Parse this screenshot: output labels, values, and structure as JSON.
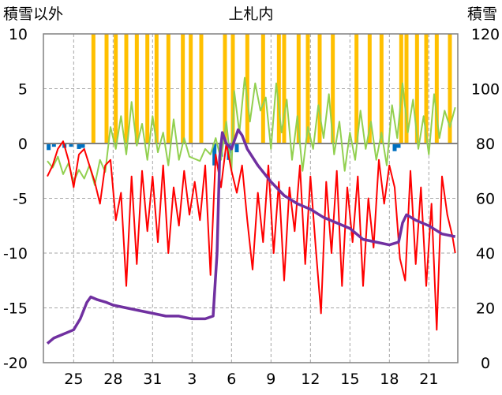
{
  "chart_data": {
    "type": "line",
    "title": "上札内",
    "left_axis": {
      "label": "積雪以外",
      "ylim": [
        -20,
        10
      ],
      "ticks": [
        "10",
        "5",
        "0",
        "-5",
        "-10",
        "-15",
        "-20"
      ]
    },
    "right_axis": {
      "label": "積雪",
      "ylim": [
        0,
        120
      ],
      "ticks": [
        "120",
        "100",
        "80",
        "60",
        "40",
        "20",
        "0"
      ]
    },
    "x_axis": {
      "tick_labels": [
        "25",
        "28",
        "31",
        "3",
        "6",
        "9",
        "12",
        "15",
        "18",
        "21"
      ],
      "tick_days": [
        2,
        5,
        8,
        11,
        14,
        17,
        20,
        23,
        26,
        29
      ],
      "xlim": [
        -0.3,
        31.2
      ]
    },
    "grid": true,
    "colors": {
      "temp_max": "#92D050",
      "temp_min": "#FF0000",
      "snow_depth": "#7030A0",
      "precip": "#FFC000",
      "neg_bars": "#0070C0"
    },
    "series": [
      {
        "key": "temp_max",
        "axis": "left",
        "points": [
          [
            0,
            -1.6
          ],
          [
            0.4,
            -2.2
          ],
          [
            0.8,
            -1.2
          ],
          [
            1.2,
            -2.8
          ],
          [
            1.6,
            -1.8
          ],
          [
            2,
            -3.5
          ],
          [
            2.4,
            -2.4
          ],
          [
            2.8,
            -3.2
          ],
          [
            3.2,
            -2.0
          ],
          [
            3.6,
            -3.8
          ],
          [
            4,
            -1.5
          ],
          [
            4.4,
            -2.6
          ],
          [
            4.8,
            1.5
          ],
          [
            5.2,
            -0.5
          ],
          [
            5.6,
            2.5
          ],
          [
            6,
            -1.0
          ],
          [
            6.4,
            3.8
          ],
          [
            6.8,
            -0.2
          ],
          [
            7.2,
            1.8
          ],
          [
            7.6,
            -1.5
          ],
          [
            8,
            2.5
          ],
          [
            8.4,
            -0.8
          ],
          [
            8.8,
            1.0
          ],
          [
            9.2,
            -2.0
          ],
          [
            9.6,
            2.2
          ],
          [
            10,
            -1.5
          ],
          [
            10.4,
            0.5
          ],
          [
            10.8,
            -1.2
          ],
          [
            11.2,
            -1.4
          ],
          [
            11.6,
            -1.6
          ],
          [
            12,
            -0.5
          ],
          [
            12.4,
            -1.0
          ],
          [
            12.8,
            0.5
          ],
          [
            13.2,
            -1.5
          ],
          [
            13.6,
            2.0
          ],
          [
            14,
            -2.5
          ],
          [
            14.2,
            4.8
          ],
          [
            14.6,
            1.0
          ],
          [
            15,
            6.0
          ],
          [
            15.4,
            2.0
          ],
          [
            15.8,
            5.5
          ],
          [
            16.2,
            3.0
          ],
          [
            16.6,
            4.2
          ],
          [
            17,
            -0.5
          ],
          [
            17.4,
            5.5
          ],
          [
            17.8,
            1.0
          ],
          [
            18.2,
            4.0
          ],
          [
            18.6,
            -1.5
          ],
          [
            19,
            2.5
          ],
          [
            19.4,
            -2.5
          ],
          [
            19.8,
            1.5
          ],
          [
            20.2,
            -0.5
          ],
          [
            20.6,
            3.5
          ],
          [
            21,
            0.5
          ],
          [
            21.4,
            4.5
          ],
          [
            21.8,
            -1.0
          ],
          [
            22.2,
            2.0
          ],
          [
            22.6,
            -2.5
          ],
          [
            23,
            1.0
          ],
          [
            23.4,
            -1.5
          ],
          [
            23.8,
            3.0
          ],
          [
            24.2,
            -0.5
          ],
          [
            24.6,
            2.0
          ],
          [
            25,
            -1.5
          ],
          [
            25.4,
            1.0
          ],
          [
            25.8,
            -2.0
          ],
          [
            26.2,
            3.5
          ],
          [
            26.6,
            0.5
          ],
          [
            27,
            5.5
          ],
          [
            27.4,
            1.0
          ],
          [
            27.8,
            4.0
          ],
          [
            28.2,
            -0.5
          ],
          [
            28.6,
            2.5
          ],
          [
            29,
            -1.0
          ],
          [
            29.4,
            4.5
          ],
          [
            29.8,
            0.5
          ],
          [
            30.2,
            3.0
          ],
          [
            30.6,
            1.5
          ],
          [
            31,
            3.3
          ]
        ]
      },
      {
        "key": "temp_min",
        "axis": "left",
        "points": [
          [
            0,
            -3.0
          ],
          [
            0.4,
            -2.0
          ],
          [
            0.8,
            -0.5
          ],
          [
            1.2,
            0.2
          ],
          [
            1.6,
            -1.5
          ],
          [
            2,
            -4.0
          ],
          [
            2.4,
            -1.0
          ],
          [
            2.8,
            -0.5
          ],
          [
            3.2,
            -2.0
          ],
          [
            3.6,
            -3.5
          ],
          [
            4,
            -5.5
          ],
          [
            4.4,
            -2.0
          ],
          [
            4.8,
            -1.5
          ],
          [
            5.2,
            -7.0
          ],
          [
            5.6,
            -4.5
          ],
          [
            6,
            -13.0
          ],
          [
            6.4,
            -3.0
          ],
          [
            6.8,
            -11.0
          ],
          [
            7.2,
            -2.5
          ],
          [
            7.6,
            -8.0
          ],
          [
            8,
            -3.0
          ],
          [
            8.4,
            -9.0
          ],
          [
            8.8,
            -2.0
          ],
          [
            9.2,
            -10.0
          ],
          [
            9.6,
            -4.0
          ],
          [
            10,
            -7.5
          ],
          [
            10.4,
            -2.5
          ],
          [
            10.8,
            -6.5
          ],
          [
            11.2,
            -3.5
          ],
          [
            11.6,
            -7.0
          ],
          [
            12,
            -2.0
          ],
          [
            12.4,
            -12.0
          ],
          [
            12.8,
            -1.0
          ],
          [
            13.2,
            -4.0
          ],
          [
            13.6,
            0.0
          ],
          [
            14,
            -2.5
          ],
          [
            14.4,
            -4.5
          ],
          [
            14.8,
            -2.0
          ],
          [
            15.2,
            -7.0
          ],
          [
            15.6,
            -11.5
          ],
          [
            16,
            -4.5
          ],
          [
            16.4,
            -9.0
          ],
          [
            16.8,
            -2.0
          ],
          [
            17.2,
            -10.0
          ],
          [
            17.6,
            -3.5
          ],
          [
            18,
            -12.5
          ],
          [
            18.4,
            -4.0
          ],
          [
            18.8,
            -8.0
          ],
          [
            19.2,
            -2.0
          ],
          [
            19.6,
            -11.0
          ],
          [
            20,
            -3.0
          ],
          [
            20.4,
            -9.5
          ],
          [
            20.8,
            -15.5
          ],
          [
            21.2,
            -3.5
          ],
          [
            21.6,
            -10.0
          ],
          [
            22,
            -2.5
          ],
          [
            22.4,
            -13.0
          ],
          [
            22.8,
            -4.0
          ],
          [
            23.2,
            -9.0
          ],
          [
            23.6,
            -3.0
          ],
          [
            24,
            -13.0
          ],
          [
            24.4,
            -5.0
          ],
          [
            24.8,
            -9.5
          ],
          [
            25.2,
            -1.5
          ],
          [
            25.6,
            -5.5
          ],
          [
            26,
            -2.0
          ],
          [
            26.4,
            -4.0
          ],
          [
            26.8,
            -10.5
          ],
          [
            27.2,
            -12.5
          ],
          [
            27.6,
            -2.5
          ],
          [
            28,
            -11.0
          ],
          [
            28.4,
            -4.0
          ],
          [
            28.8,
            -13.0
          ],
          [
            29.2,
            -5.5
          ],
          [
            29.6,
            -17.0
          ],
          [
            30,
            -3.0
          ],
          [
            30.4,
            -6.5
          ],
          [
            30.8,
            -8.5
          ],
          [
            31,
            -10.0
          ]
        ]
      },
      {
        "key": "snow_depth",
        "axis": "right",
        "points": [
          [
            0,
            7
          ],
          [
            0.5,
            9
          ],
          [
            1,
            10
          ],
          [
            1.5,
            11
          ],
          [
            2,
            12
          ],
          [
            2.5,
            16
          ],
          [
            3,
            22
          ],
          [
            3.3,
            24
          ],
          [
            3.8,
            23
          ],
          [
            4.5,
            22
          ],
          [
            5,
            21
          ],
          [
            6,
            20
          ],
          [
            7,
            19
          ],
          [
            8,
            18
          ],
          [
            9,
            17
          ],
          [
            10,
            17
          ],
          [
            11,
            16
          ],
          [
            12,
            16
          ],
          [
            12.6,
            17
          ],
          [
            12.9,
            40
          ],
          [
            13.1,
            75
          ],
          [
            13.3,
            84
          ],
          [
            13.6,
            80
          ],
          [
            14,
            78
          ],
          [
            14.5,
            85
          ],
          [
            14.8,
            83
          ],
          [
            15.2,
            78
          ],
          [
            16,
            72
          ],
          [
            17,
            66
          ],
          [
            18,
            61
          ],
          [
            19,
            58
          ],
          [
            20,
            56
          ],
          [
            21,
            53
          ],
          [
            22,
            51
          ],
          [
            23,
            49
          ],
          [
            24,
            45
          ],
          [
            25,
            44
          ],
          [
            26,
            43
          ],
          [
            26.7,
            44
          ],
          [
            27,
            51
          ],
          [
            27.3,
            54
          ],
          [
            28,
            52
          ],
          [
            29,
            50
          ],
          [
            30,
            47
          ],
          [
            31,
            46
          ]
        ]
      }
    ],
    "precip_bars": {
      "axis": "left",
      "days": [
        3.5,
        4.5,
        5.2,
        6.0,
        6.8,
        7.6,
        8.3,
        9.2,
        10.3,
        10.9,
        11.7,
        13.5,
        14.1,
        15.2,
        16.4,
        17.6,
        18.0,
        19.1,
        19.8,
        20.7,
        21.7,
        23.5,
        24.5,
        25.4,
        26.9,
        27.3,
        28.1,
        28.8,
        29.6,
        30.6
      ],
      "top": 10
    },
    "negative_bars": {
      "axis": "left",
      "items": [
        [
          0.1,
          -0.6
        ],
        [
          0.5,
          -0.3
        ],
        [
          1.3,
          -0.4
        ],
        [
          1.8,
          -0.3
        ],
        [
          2.4,
          -0.5
        ],
        [
          2.7,
          -0.4
        ],
        [
          12.7,
          -2.0
        ],
        [
          13.2,
          -1.2
        ],
        [
          13.8,
          -1.5
        ],
        [
          14.4,
          -0.8
        ],
        [
          26.4,
          -0.7
        ],
        [
          26.7,
          -0.4
        ]
      ]
    }
  }
}
